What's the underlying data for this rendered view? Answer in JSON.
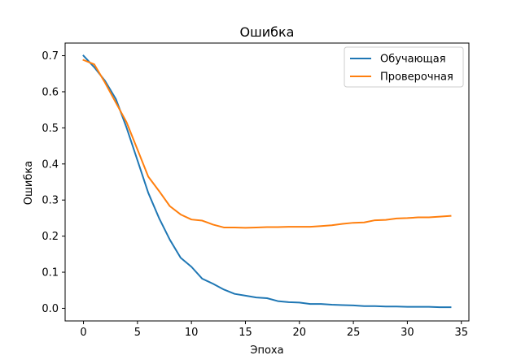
{
  "chart_data": {
    "type": "line",
    "title": "Ошибка",
    "xlabel": "Эпоха",
    "ylabel": "Ошибка",
    "xlim": [
      -1.7,
      35.7
    ],
    "ylim": [
      -0.035,
      0.735
    ],
    "xticks": [
      0,
      5,
      10,
      15,
      20,
      25,
      30,
      35
    ],
    "yticks": [
      0.0,
      0.1,
      0.2,
      0.3,
      0.4,
      0.5,
      0.6,
      0.7
    ],
    "ytick_labels": [
      "0.0",
      "0.1",
      "0.2",
      "0.3",
      "0.4",
      "0.5",
      "0.6",
      "0.7"
    ],
    "grid": false,
    "legend_position": "top-right",
    "x": [
      0,
      1,
      2,
      3,
      4,
      5,
      6,
      7,
      8,
      9,
      10,
      11,
      12,
      13,
      14,
      15,
      16,
      17,
      18,
      19,
      20,
      21,
      22,
      23,
      24,
      25,
      26,
      27,
      28,
      29,
      30,
      31,
      32,
      33,
      34
    ],
    "series": [
      {
        "name": "Обучающая",
        "color": "#1f77b4",
        "values": [
          0.7,
          0.668,
          0.63,
          0.58,
          0.5,
          0.41,
          0.32,
          0.25,
          0.19,
          0.14,
          0.115,
          0.082,
          0.068,
          0.052,
          0.04,
          0.035,
          0.03,
          0.028,
          0.02,
          0.017,
          0.016,
          0.012,
          0.012,
          0.01,
          0.009,
          0.008,
          0.006,
          0.006,
          0.005,
          0.005,
          0.004,
          0.004,
          0.004,
          0.003,
          0.003
        ]
      },
      {
        "name": "Проверочная",
        "color": "#ff7f0e",
        "values": [
          0.688,
          0.676,
          0.625,
          0.57,
          0.515,
          0.44,
          0.365,
          0.325,
          0.283,
          0.26,
          0.246,
          0.243,
          0.232,
          0.224,
          0.224,
          0.223,
          0.224,
          0.225,
          0.225,
          0.226,
          0.226,
          0.226,
          0.228,
          0.23,
          0.234,
          0.237,
          0.238,
          0.244,
          0.245,
          0.249,
          0.25,
          0.252,
          0.252,
          0.254,
          0.256
        ]
      }
    ]
  }
}
